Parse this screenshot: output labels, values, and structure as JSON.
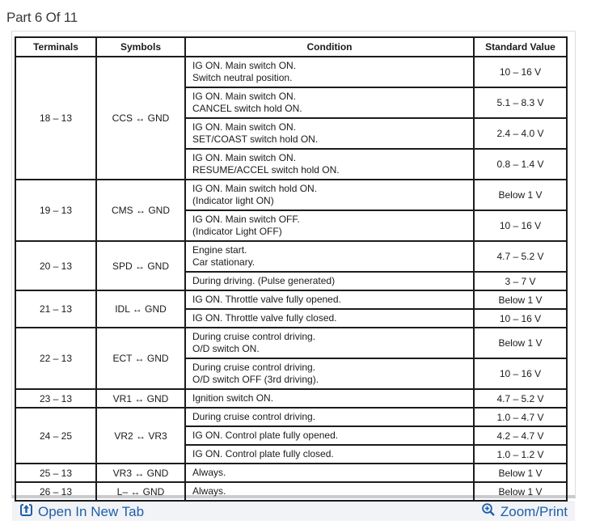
{
  "page_title": "Part 6 Of 11",
  "colors": {
    "link_blue": "#1d5fa9",
    "table_line": "#1c1c1c",
    "footer_background": "#f2f3f7",
    "panel_border": "#dcdee2"
  },
  "table": {
    "headers": [
      "Terminals",
      "Symbols",
      "Condition",
      "Standard Value"
    ],
    "groups": [
      {
        "terminals": "18 – 13",
        "symbols": "CCS ↔ GND",
        "rows": [
          {
            "condition": [
              "IG ON. Main switch ON.",
              "Switch neutral position."
            ],
            "value": "10 – 16 V"
          },
          {
            "condition": [
              "IG ON. Main switch ON.",
              "CANCEL switch hold ON."
            ],
            "value": "5.1 – 8.3 V"
          },
          {
            "condition": [
              "IG ON. Main switch ON.",
              "SET/COAST switch hold ON."
            ],
            "value": "2.4 – 4.0 V"
          },
          {
            "condition": [
              "IG ON. Main switch ON.",
              "RESUME/ACCEL switch hold ON."
            ],
            "value": "0.8 – 1.4 V"
          }
        ]
      },
      {
        "terminals": "19 – 13",
        "symbols": "CMS ↔ GND",
        "rows": [
          {
            "condition": [
              "IG ON. Main switch hold ON.",
              "(Indicator light ON)"
            ],
            "value": "Below 1 V"
          },
          {
            "condition": [
              "IG ON. Main switch OFF.",
              "(Indicator Light OFF)"
            ],
            "value": "10 – 16 V"
          }
        ]
      },
      {
        "terminals": "20 – 13",
        "symbols": "SPD ↔ GND",
        "rows": [
          {
            "condition": [
              "Engine start.",
              "Car stationary."
            ],
            "value": "4.7 – 5.2 V"
          },
          {
            "condition": [
              "During driving. (Pulse generated)"
            ],
            "value": "3 – 7 V"
          }
        ]
      },
      {
        "terminals": "21 – 13",
        "symbols": "IDL ↔ GND",
        "rows": [
          {
            "condition": [
              "IG ON. Throttle valve fully opened."
            ],
            "value": "Below 1 V"
          },
          {
            "condition": [
              "IG ON. Throttle valve fully closed."
            ],
            "value": "10 – 16 V"
          }
        ]
      },
      {
        "terminals": "22 – 13",
        "symbols": "ECT ↔ GND",
        "rows": [
          {
            "condition": [
              "During cruise control driving.",
              "O/D switch ON."
            ],
            "value": "Below 1 V"
          },
          {
            "condition": [
              "During cruise control driving.",
              "O/D switch OFF (3rd driving)."
            ],
            "value": "10 – 16 V"
          }
        ]
      },
      {
        "terminals": "23 – 13",
        "symbols": "VR1 ↔ GND",
        "rows": [
          {
            "condition": [
              "Ignition switch ON."
            ],
            "value": "4.7 – 5.2 V"
          }
        ]
      },
      {
        "terminals": "24 – 25",
        "symbols": "VR2 ↔ VR3",
        "rows": [
          {
            "condition": [
              "During cruise control driving."
            ],
            "value": "1.0 – 4.7 V"
          },
          {
            "condition": [
              "IG ON. Control plate fully opened."
            ],
            "value": "4.2 – 4.7 V"
          },
          {
            "condition": [
              "IG ON. Control plate fully closed."
            ],
            "value": "1.0 – 1.2 V"
          }
        ]
      },
      {
        "terminals": "25 – 13",
        "symbols": "VR3 ↔ GND",
        "rows": [
          {
            "condition": [
              "Always."
            ],
            "value": "Below 1 V"
          }
        ]
      },
      {
        "terminals": "26 – 13",
        "symbols": "L– ↔ GND",
        "rows": [
          {
            "condition": [
              "Always."
            ],
            "value": "Below 1 V"
          }
        ]
      }
    ]
  },
  "footer": {
    "open_link": "Open In New Tab",
    "zoom_link": "Zoom/Print"
  }
}
